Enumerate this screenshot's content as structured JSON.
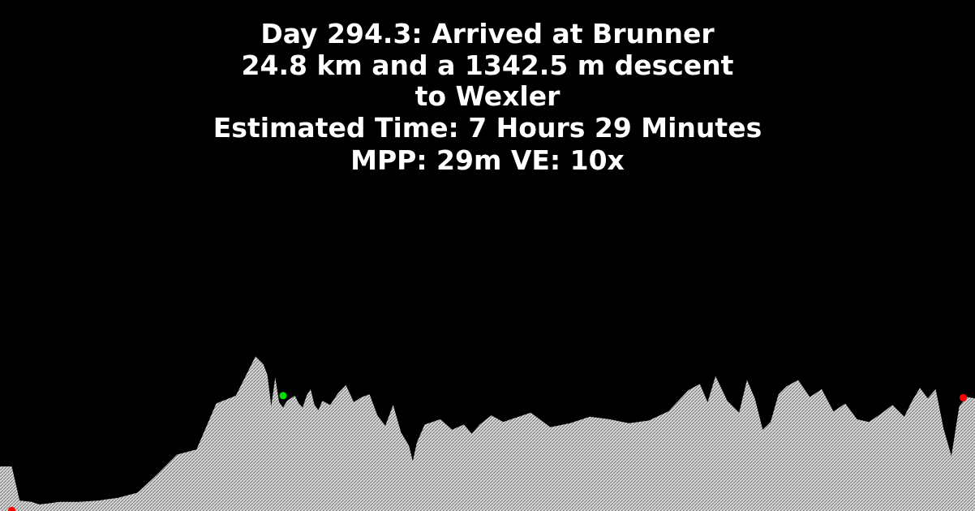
{
  "header": {
    "line1": "Day 294.3: Arrived at Brunner",
    "line2": "24.8 km and a 1342.5 m descent to Wexler",
    "line3": "Estimated Time: 7 Hours 29 Minutes",
    "line4": "MPP: 29m VE: 10x"
  },
  "colors": {
    "background": "#000000",
    "text": "#ffffff",
    "terrain": "#d8d8d8",
    "hatch": "#7a7a7a",
    "current_marker": "#00e000",
    "endpoint_marker": "#ff0000"
  },
  "chart_data": {
    "type": "area",
    "title": "",
    "xlabel": "",
    "ylabel": "",
    "x": [
      0,
      0.3,
      0.5,
      0.8,
      1.0,
      1.3,
      1.5,
      2.0,
      2.5,
      3.0,
      3.5,
      4.0,
      4.5,
      5.0,
      5.5,
      6.0,
      6.5,
      6.7,
      6.8,
      6.9,
      7.0,
      7.1,
      7.2,
      7.3,
      7.5,
      7.6,
      7.7,
      7.8,
      7.9,
      8.0,
      8.1,
      8.2,
      8.4,
      8.6,
      8.8,
      9.0,
      9.2,
      9.4,
      9.6,
      9.8,
      10.0,
      10.2,
      10.4,
      10.5,
      10.6,
      10.8,
      11.0,
      11.2,
      11.5,
      11.8,
      12.0,
      12.2,
      12.5,
      12.8,
      13.0,
      13.5,
      14.0,
      14.5,
      15.0,
      15.5,
      16.0,
      16.5,
      17.0,
      17.5,
      17.8,
      18.0,
      18.2,
      18.5,
      18.8,
      19.0,
      19.2,
      19.4,
      19.6,
      19.8,
      20.0,
      20.3,
      20.6,
      20.9,
      21.2,
      21.5,
      21.8,
      22.1,
      22.4,
      22.7,
      23.0,
      23.2,
      23.4,
      23.6,
      23.8,
      24.0,
      24.2,
      24.4,
      24.6,
      24.8
    ],
    "elevation": [
      2540,
      2540,
      2280,
      2270,
      2250,
      2260,
      2270,
      2270,
      2280,
      2300,
      2340,
      2480,
      2630,
      2670,
      3020,
      3080,
      3380,
      3320,
      3240,
      3000,
      3220,
      3030,
      2990,
      3040,
      3080,
      3020,
      2990,
      3080,
      3130,
      3010,
      2970,
      3040,
      3010,
      3100,
      3160,
      3030,
      3070,
      3090,
      2930,
      2850,
      3010,
      2800,
      2700,
      2580,
      2720,
      2860,
      2880,
      2900,
      2820,
      2860,
      2790,
      2860,
      2930,
      2880,
      2900,
      2950,
      2840,
      2870,
      2920,
      2900,
      2870,
      2890,
      2960,
      3120,
      3170,
      3030,
      3230,
      3040,
      2950,
      3200,
      3060,
      2820,
      2880,
      3090,
      3150,
      3200,
      3070,
      3130,
      2960,
      3020,
      2900,
      2880,
      2940,
      3010,
      2920,
      3040,
      3140,
      3060,
      3130,
      2830,
      2620,
      3000,
      3070,
      3060
    ],
    "ylim": [
      2200,
      3500
    ],
    "current_marker": {
      "x": 7.2,
      "y": 3080
    },
    "endpoint_markers": [
      {
        "x": 0.3,
        "y": 2205
      },
      {
        "x": 24.5,
        "y": 3065
      }
    ]
  }
}
